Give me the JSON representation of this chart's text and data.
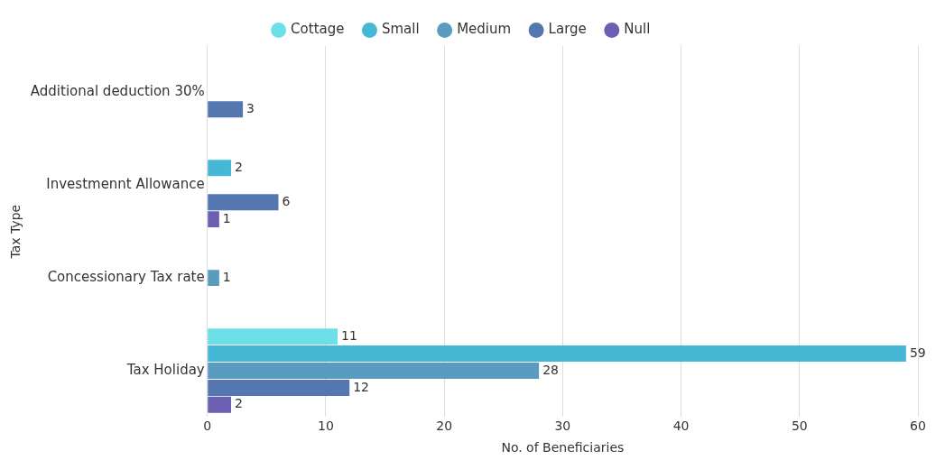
{
  "chart_data": {
    "type": "bar",
    "orientation": "horizontal",
    "xlabel": "No. of Beneficiaries",
    "ylabel": "Tax Type",
    "categories": [
      "Additional deduction 30%",
      "Investmennt Allowance",
      "Concessionary Tax rate",
      "Tax Holiday"
    ],
    "series": [
      {
        "name": "Cottage",
        "color": "#6ddfe6",
        "values": [
          null,
          null,
          null,
          11
        ]
      },
      {
        "name": "Small",
        "color": "#45b8d6",
        "values": [
          null,
          2,
          null,
          59
        ]
      },
      {
        "name": "Medium",
        "color": "#5a9bc0",
        "values": [
          null,
          null,
          1,
          28
        ]
      },
      {
        "name": "Large",
        "color": "#5577b0",
        "values": [
          3,
          6,
          null,
          12
        ]
      },
      {
        "name": "Null",
        "color": "#6a5fb0",
        "values": [
          null,
          1,
          null,
          2
        ]
      }
    ],
    "xlim": [
      0,
      60
    ],
    "xticks": [
      0,
      10,
      20,
      30,
      40,
      50,
      60
    ],
    "grid": "x",
    "legend": "top",
    "marker": "circle",
    "data_labels": true
  }
}
